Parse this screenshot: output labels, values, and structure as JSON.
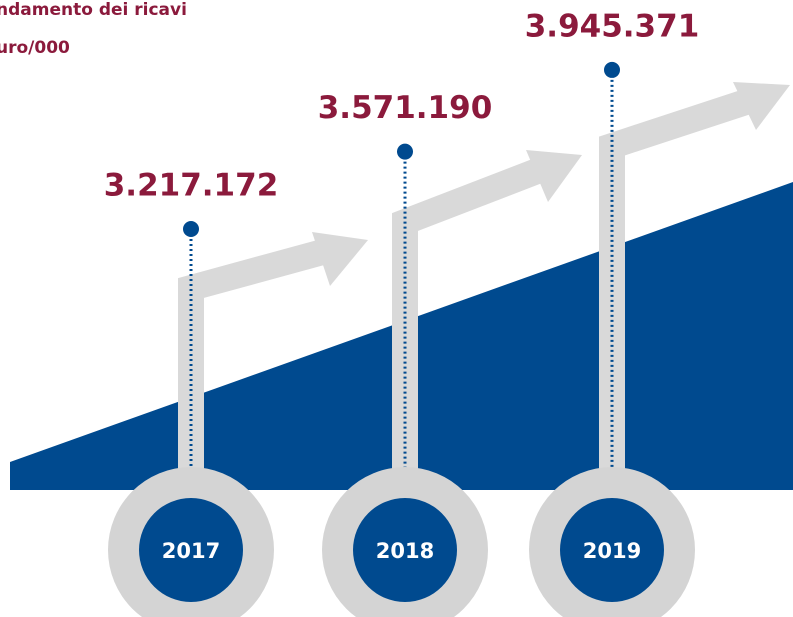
{
  "chart_data": {
    "type": "lollipop",
    "title": "ndamento dei ricavi",
    "subtitle": "uro/000",
    "categories": [
      "2017",
      "2018",
      "2019"
    ],
    "values": [
      3217172,
      3571190,
      3945371
    ],
    "value_labels": [
      "3.217.172",
      "3.571.190",
      "3.945.371"
    ],
    "color": "#004a8f",
    "label_color": "#8b1a3c",
    "ylim": [
      3000000,
      4000000
    ]
  }
}
